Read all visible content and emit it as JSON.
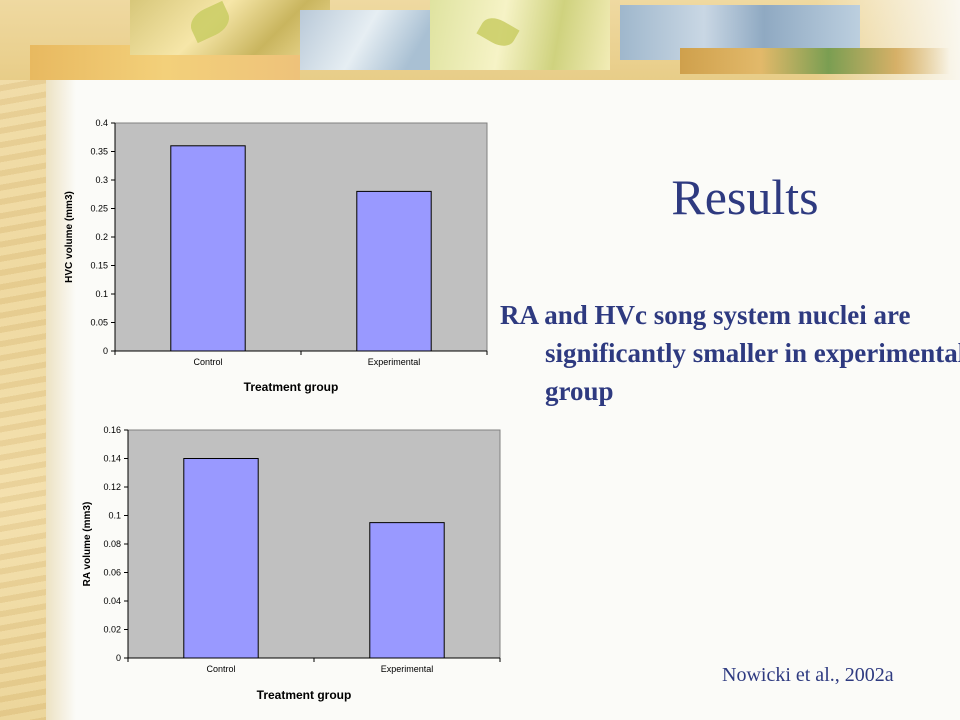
{
  "slide": {
    "title": "Results",
    "bullet": "RA and HVc song system nuclei are significantly smaller in experimental group",
    "citation": "Nowicki et al., 2002a"
  },
  "colors": {
    "title_text": "#2e3a80",
    "bar_fill": "#9999ff",
    "plot_background": "#c0c0c0"
  },
  "chart_data": [
    {
      "type": "bar",
      "categories": [
        "Control",
        "Experimental"
      ],
      "values": [
        0.36,
        0.28
      ],
      "title": "",
      "xlabel": "Treatment group",
      "ylabel": "HVC volume (mm3)",
      "ylim": [
        0,
        0.4
      ],
      "yticks": [
        "0",
        "0.05",
        "0.1",
        "0.15",
        "0.2",
        "0.25",
        "0.3",
        "0.35",
        "0.4"
      ],
      "grid": false,
      "legend": "none"
    },
    {
      "type": "bar",
      "categories": [
        "Control",
        "Experimental"
      ],
      "values": [
        0.14,
        0.095
      ],
      "title": "",
      "xlabel": "Treatment group",
      "ylabel": "RA volume (mm3)",
      "ylim": [
        0,
        0.16
      ],
      "yticks": [
        "0",
        "0.02",
        "0.04",
        "0.06",
        "0.08",
        "0.1",
        "0.12",
        "0.14",
        "0.16"
      ],
      "grid": false,
      "legend": "none"
    }
  ]
}
